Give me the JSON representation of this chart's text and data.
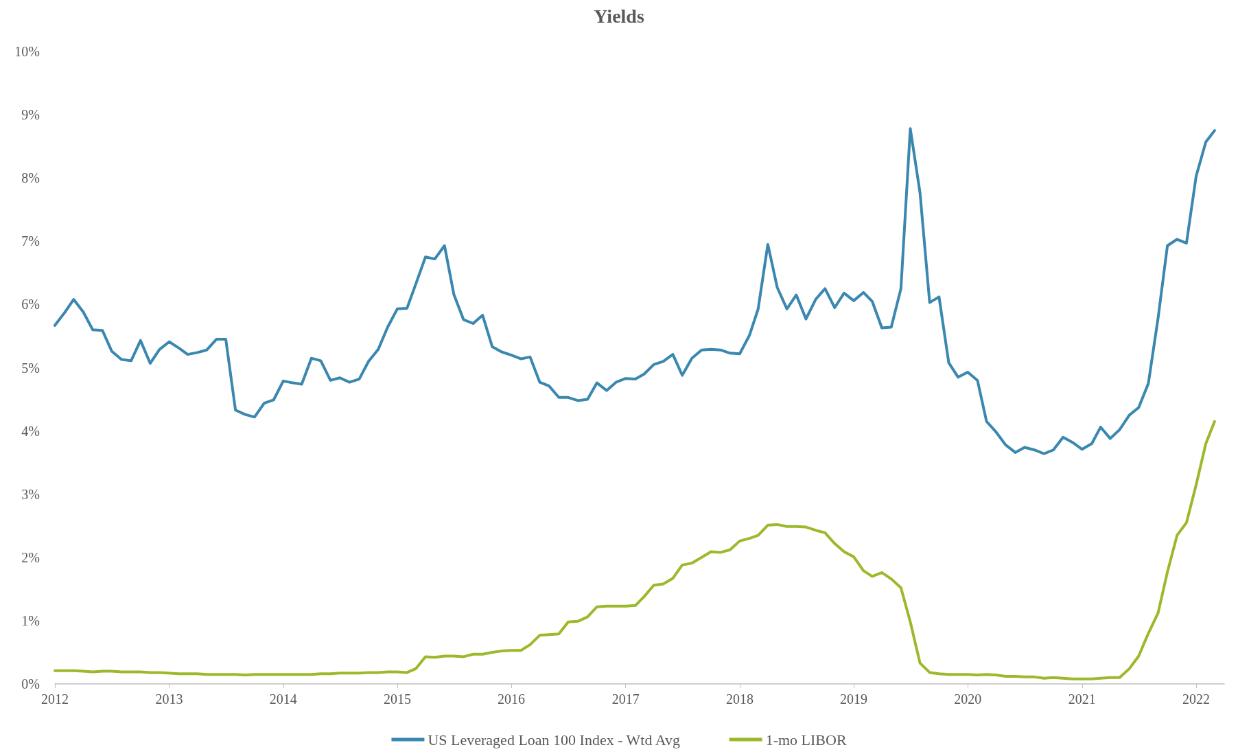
{
  "chart_data": {
    "type": "line",
    "title": "Yields",
    "x": [
      "2012-01",
      "2012-02",
      "2012-03",
      "2012-04",
      "2012-05",
      "2012-06",
      "2012-07",
      "2012-08",
      "2012-09",
      "2012-10",
      "2012-11",
      "2012-12",
      "2013-01",
      "2013-02",
      "2013-03",
      "2013-04",
      "2013-05",
      "2013-06",
      "2013-07",
      "2013-08",
      "2013-09",
      "2013-10",
      "2013-11",
      "2013-12",
      "2014-01",
      "2014-02",
      "2014-03",
      "2014-04",
      "2014-05",
      "2014-06",
      "2014-07",
      "2014-08",
      "2014-09",
      "2014-10",
      "2014-11",
      "2014-12",
      "2015-01",
      "2015-02",
      "2015-03",
      "2015-04",
      "2015-05",
      "2015-06",
      "2015-07",
      "2015-08",
      "2015-09",
      "2015-10",
      "2015-11",
      "2015-12",
      "2016-01",
      "2016-02",
      "2016-03",
      "2016-04",
      "2016-05",
      "2016-06",
      "2016-07",
      "2016-08",
      "2016-09",
      "2016-10",
      "2016-11",
      "2016-12",
      "2017-01",
      "2017-02",
      "2017-03",
      "2017-04",
      "2017-05",
      "2017-06",
      "2017-07",
      "2017-08",
      "2017-09",
      "2017-10",
      "2017-11",
      "2017-12",
      "2018-01",
      "2018-02",
      "2018-03",
      "2018-04",
      "2018-05",
      "2018-06",
      "2018-07",
      "2018-08",
      "2018-09",
      "2018-10",
      "2018-11",
      "2018-12",
      "2019-01",
      "2019-02",
      "2019-03",
      "2019-04",
      "2019-05",
      "2019-06",
      "2019-07",
      "2019-08",
      "2019-09",
      "2019-10",
      "2019-11",
      "2019-12",
      "2020-01",
      "2020-02",
      "2020-03",
      "2020-04",
      "2020-05",
      "2020-06",
      "2020-07",
      "2020-08",
      "2020-09",
      "2020-10",
      "2020-11",
      "2020-12",
      "2021-01",
      "2021-02",
      "2021-03",
      "2021-04",
      "2021-05",
      "2021-06",
      "2021-07",
      "2021-08",
      "2021-09",
      "2021-10",
      "2021-11",
      "2021-12",
      "2022-01",
      "2022-02",
      "2022-03"
    ],
    "series": [
      {
        "name": "US Leveraged Loan 100 Index - Wtd Avg",
        "color": "#3a87b0",
        "values": [
          5.67,
          5.87,
          6.08,
          5.88,
          5.6,
          5.59,
          5.26,
          5.13,
          5.11,
          5.43,
          5.07,
          5.29,
          5.41,
          5.31,
          5.21,
          5.24,
          5.28,
          5.45,
          5.45,
          4.33,
          4.26,
          4.22,
          4.44,
          4.49,
          4.79,
          4.76,
          4.74,
          5.15,
          5.11,
          4.8,
          4.84,
          4.77,
          4.82,
          5.1,
          5.29,
          5.64,
          5.93,
          5.94,
          6.32,
          6.75,
          6.72,
          6.93,
          6.16,
          5.76,
          5.7,
          5.83,
          5.33,
          5.25,
          5.2,
          5.14,
          5.17,
          4.77,
          4.71,
          4.53,
          4.53,
          4.48,
          4.5,
          4.76,
          4.64,
          4.77,
          4.83,
          4.82,
          4.9,
          5.05,
          5.1,
          5.21,
          4.88,
          5.15,
          5.28,
          5.29,
          5.28,
          5.23,
          5.22,
          5.51,
          5.93,
          6.95,
          6.27,
          5.93,
          6.15,
          5.77,
          6.08,
          6.25,
          5.95,
          6.18,
          6.06,
          6.19,
          6.05,
          5.63,
          5.64,
          6.25,
          8.78,
          7.77,
          6.03,
          6.12,
          5.08,
          4.85,
          4.93,
          4.8,
          4.15,
          3.98,
          3.78,
          3.66,
          3.74,
          3.7,
          3.64,
          3.7,
          3.9,
          3.82,
          3.71,
          3.8,
          4.06,
          3.88,
          4.02,
          4.25,
          4.37,
          4.75,
          5.78,
          6.93,
          7.03,
          6.97,
          8.03,
          8.57,
          8.75
        ]
      },
      {
        "name": "1-mo LIBOR",
        "color": "#9bb92a",
        "values": [
          0.21,
          0.21,
          0.21,
          0.2,
          0.19,
          0.2,
          0.2,
          0.19,
          0.19,
          0.19,
          0.18,
          0.18,
          0.17,
          0.16,
          0.16,
          0.16,
          0.15,
          0.15,
          0.15,
          0.15,
          0.14,
          0.15,
          0.15,
          0.15,
          0.15,
          0.15,
          0.15,
          0.15,
          0.16,
          0.16,
          0.17,
          0.17,
          0.17,
          0.18,
          0.18,
          0.19,
          0.19,
          0.18,
          0.24,
          0.43,
          0.42,
          0.44,
          0.44,
          0.43,
          0.47,
          0.47,
          0.5,
          0.52,
          0.53,
          0.53,
          0.62,
          0.77,
          0.78,
          0.79,
          0.98,
          0.99,
          1.06,
          1.22,
          1.23,
          1.23,
          1.23,
          1.24,
          1.38,
          1.56,
          1.58,
          1.67,
          1.88,
          1.91,
          2.0,
          2.09,
          2.08,
          2.12,
          2.26,
          2.3,
          2.35,
          2.51,
          2.52,
          2.49,
          2.49,
          2.48,
          2.43,
          2.39,
          2.22,
          2.09,
          2.01,
          1.79,
          1.7,
          1.76,
          1.66,
          1.52,
          0.98,
          0.33,
          0.18,
          0.16,
          0.15,
          0.15,
          0.15,
          0.14,
          0.15,
          0.14,
          0.12,
          0.12,
          0.11,
          0.11,
          0.09,
          0.1,
          0.09,
          0.08,
          0.08,
          0.08,
          0.09,
          0.1,
          0.1,
          0.24,
          0.44,
          0.8,
          1.12,
          1.77,
          2.35,
          2.55,
          3.15,
          3.8,
          4.15
        ]
      }
    ],
    "xlim": [
      "2012-01",
      "2022-04"
    ],
    "xticks": [
      {
        "value": "2012",
        "label": "2012"
      },
      {
        "value": "2013",
        "label": "2013"
      },
      {
        "value": "2014",
        "label": "2014"
      },
      {
        "value": "2015",
        "label": "2015"
      },
      {
        "value": "2016",
        "label": "2016"
      },
      {
        "value": "2017",
        "label": "2017"
      },
      {
        "value": "2018",
        "label": "2018"
      },
      {
        "value": "2019",
        "label": "2019"
      },
      {
        "value": "2020",
        "label": "2020"
      },
      {
        "value": "2021",
        "label": "2021"
      },
      {
        "value": "2022",
        "label": "2022"
      }
    ],
    "ylim": [
      0,
      10
    ],
    "yticks": [
      {
        "value": 0,
        "label": "0%"
      },
      {
        "value": 1,
        "label": "1%"
      },
      {
        "value": 2,
        "label": "2%"
      },
      {
        "value": 3,
        "label": "3%"
      },
      {
        "value": 4,
        "label": "4%"
      },
      {
        "value": 5,
        "label": "5%"
      },
      {
        "value": 6,
        "label": "6%"
      },
      {
        "value": 7,
        "label": "7%"
      },
      {
        "value": 8,
        "label": "8%"
      },
      {
        "value": 9,
        "label": "9%"
      },
      {
        "value": 10,
        "label": "10%"
      }
    ],
    "grid": false,
    "legend": "bottom",
    "marker": "none",
    "line_style": "solid"
  }
}
